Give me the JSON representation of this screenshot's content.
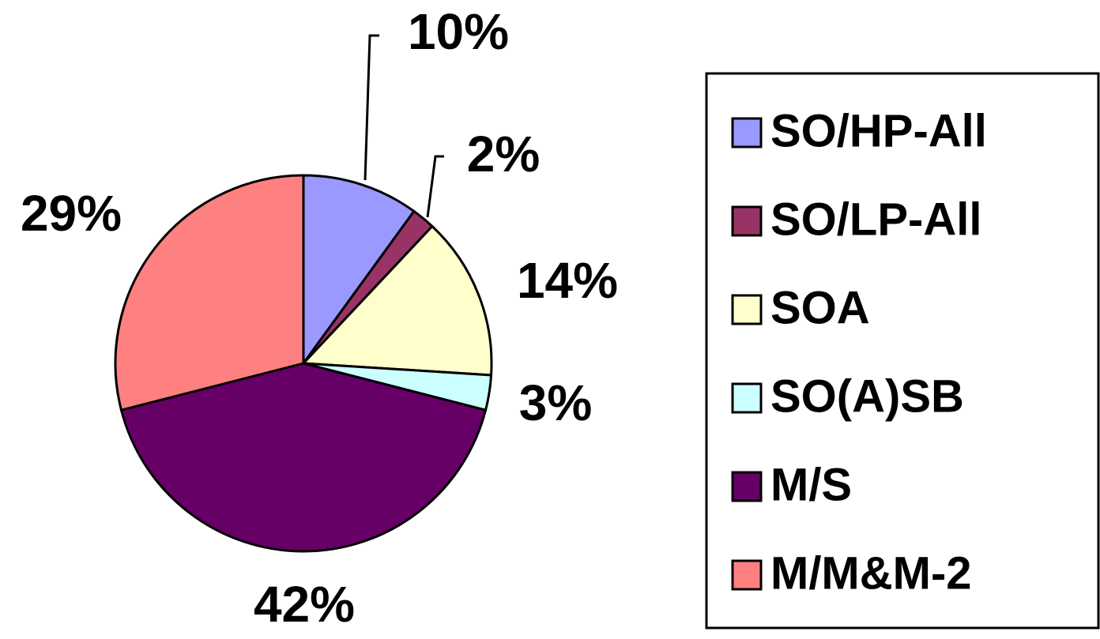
{
  "chart_data": {
    "type": "pie",
    "categories": [
      "SO/HP-All",
      "SO/LP-All",
      "SOA",
      "SO(A)SB",
      "M/S",
      "M/M&M-2"
    ],
    "values": [
      10,
      2,
      14,
      3,
      42,
      29
    ],
    "value_labels": [
      "10%",
      "2%",
      "14%",
      "3%",
      "42%",
      "29%"
    ],
    "colors": [
      "#9999ff",
      "#993366",
      "#ffffcc",
      "#ccffff",
      "#660066",
      "#ff8080"
    ],
    "legend": "right"
  }
}
